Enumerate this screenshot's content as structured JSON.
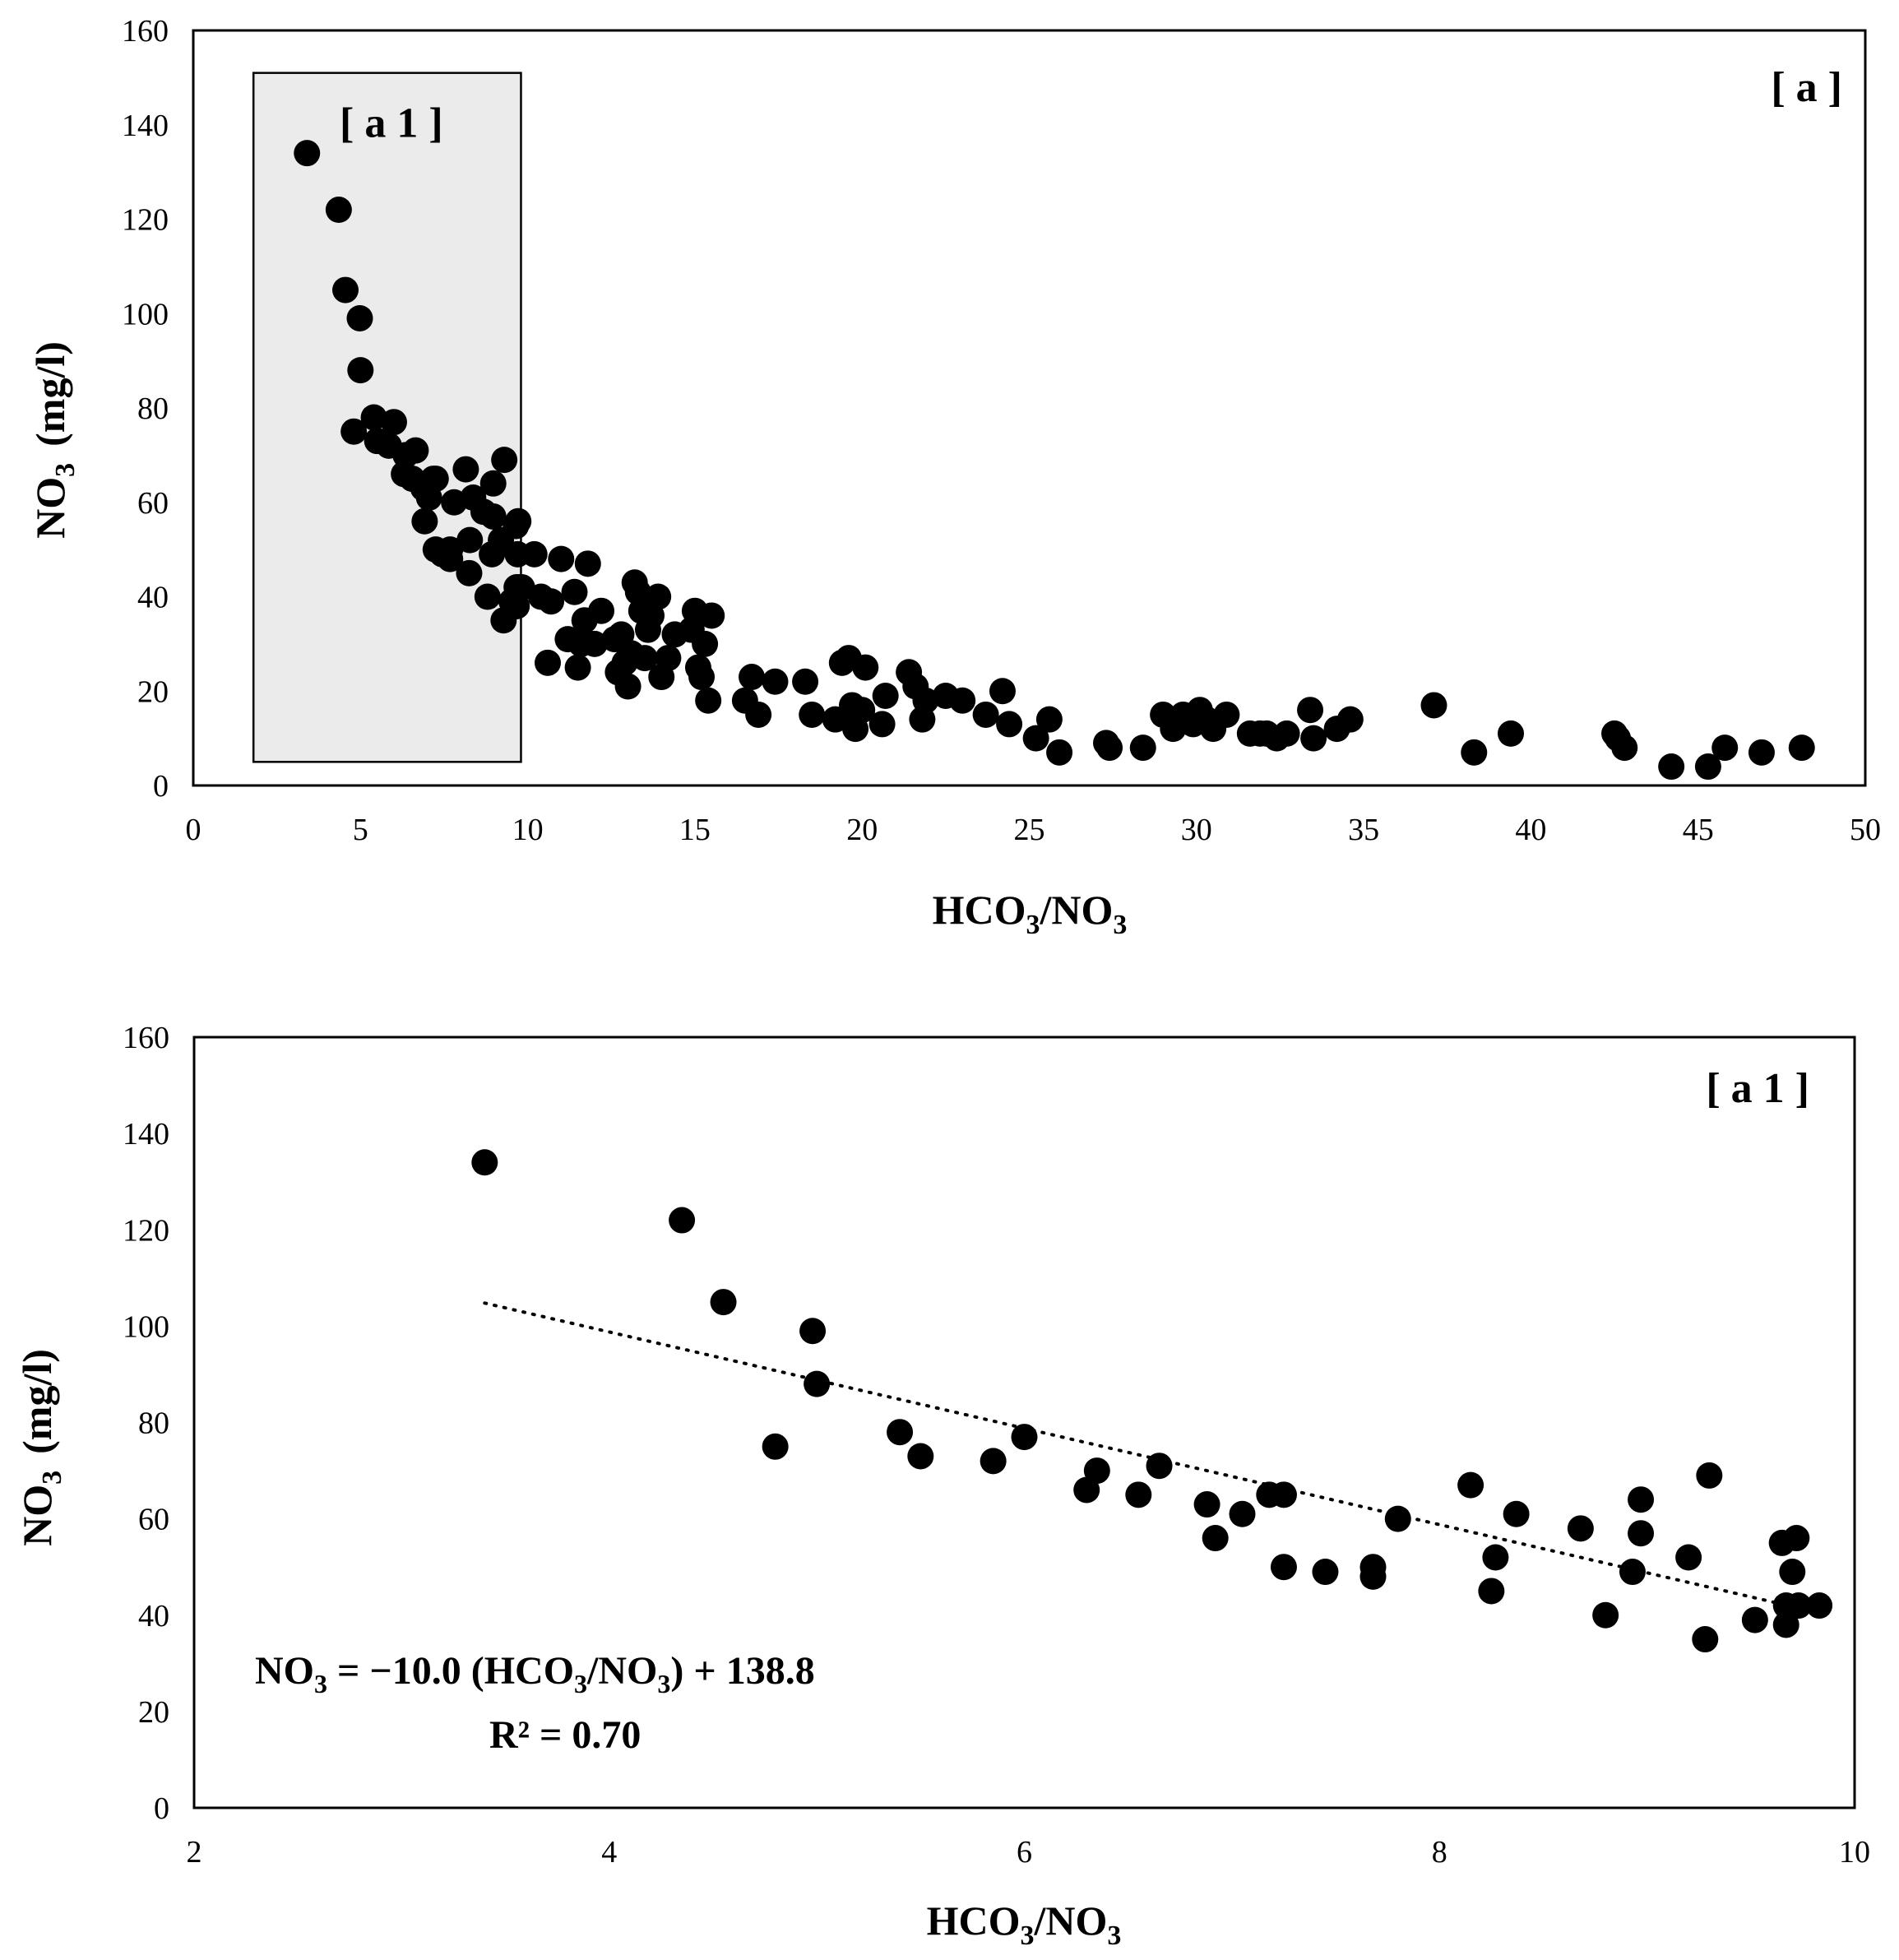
{
  "chart_data": [
    {
      "type": "scatter",
      "panel_label": "[ a ]",
      "xlabel": {
        "base": "HCO",
        "sub1": "3",
        "mid": "/NO",
        "sub2": "3"
      },
      "ylabel": {
        "base": "NO",
        "sub": "3",
        "unit": "(mg/l)"
      },
      "xlim": [
        0,
        50
      ],
      "ylim": [
        0,
        160
      ],
      "x_ticks": [
        "0",
        "5",
        "10",
        "15",
        "20",
        "25",
        "30",
        "35",
        "40",
        "45",
        "50"
      ],
      "y_ticks": [
        "0",
        "20",
        "40",
        "60",
        "80",
        "100",
        "120",
        "140",
        "160"
      ],
      "highlight_box": {
        "label": "[ a 1 ]",
        "x_range": [
          1.8,
          9.8
        ],
        "y_range": [
          5,
          151
        ]
      },
      "x": [
        3.4,
        4.35,
        4.55,
        4.98,
        5.0,
        4.8,
        5.4,
        5.5,
        5.85,
        6.0,
        6.3,
        6.35,
        6.55,
        6.65,
        6.88,
        6.92,
        7.05,
        7.18,
        7.25,
        7.25,
        7.45,
        7.68,
        7.68,
        7.8,
        8.15,
        8.25,
        8.27,
        8.37,
        8.68,
        8.8,
        8.93,
        8.97,
        8.97,
        9.2,
        9.28,
        9.3,
        9.52,
        9.65,
        9.67,
        9.67,
        9.7,
        9.72,
        9.73,
        9.83,
        10.2,
        10.4,
        10.6,
        10.7,
        11.0,
        11.2,
        11.4,
        11.5,
        11.6,
        11.7,
        11.8,
        12.0,
        12.2,
        12.6,
        12.7,
        12.8,
        12.9,
        13.0,
        13.1,
        13.2,
        13.3,
        13.4,
        13.5,
        13.6,
        13.7,
        13.9,
        14.0,
        14.2,
        14.4,
        14.9,
        15.0,
        15.1,
        15.2,
        15.3,
        15.5,
        15.4,
        16.5,
        16.7,
        16.9,
        17.4,
        18.3,
        18.5,
        19.2,
        19.4,
        19.6,
        19.7,
        19.8,
        20.0,
        20.1,
        20.6,
        20.7,
        21.4,
        21.6,
        21.8,
        21.9,
        22.5,
        23.0,
        23.7,
        24.2,
        24.4,
        25.2,
        25.6,
        25.9,
        27.3,
        27.4,
        28.4,
        29.0,
        29.3,
        29.6,
        29.9,
        30.1,
        30.3,
        30.5,
        30.9,
        31.6,
        31.9,
        32.1,
        32.4,
        32.7,
        33.4,
        33.5,
        34.2,
        34.6,
        37.1,
        38.3,
        39.4,
        42.5,
        42.6,
        42.8,
        44.2,
        45.3,
        45.8,
        46.9,
        48.1
      ],
      "y": [
        134,
        122,
        105,
        99,
        88,
        75,
        78,
        73,
        72,
        77,
        66,
        70,
        65,
        71,
        63,
        56,
        61,
        65,
        50,
        65,
        49,
        48,
        50,
        60,
        67,
        45,
        52,
        61,
        58,
        40,
        49,
        64,
        57,
        52,
        35,
        69,
        39,
        55,
        42,
        38,
        49,
        56,
        42,
        42,
        49,
        40,
        26,
        39,
        48,
        31,
        41,
        25,
        30,
        35,
        47,
        30,
        37,
        31,
        24,
        32,
        26,
        21,
        28,
        43,
        41,
        37,
        27,
        33,
        36,
        40,
        23,
        27,
        32,
        33,
        37,
        25,
        23,
        30,
        36,
        18,
        18,
        23,
        15,
        22,
        22,
        15,
        14,
        26,
        27,
        17,
        12,
        16,
        25,
        13,
        19,
        24,
        21,
        14,
        18,
        19,
        18,
        15,
        20,
        13,
        10,
        14,
        7,
        9,
        8,
        8,
        15,
        12,
        15,
        13,
        16,
        14,
        12,
        15,
        11,
        11,
        11,
        10,
        11,
        16,
        10,
        12,
        14,
        17,
        7,
        11,
        11,
        10,
        8,
        4,
        4,
        8,
        7,
        8
      ]
    },
    {
      "type": "scatter",
      "panel_label": "[ a 1 ]",
      "xlabel": {
        "base": "HCO",
        "sub1": "3",
        "mid": "/NO",
        "sub2": "3"
      },
      "ylabel": {
        "base": "NO",
        "sub": "3",
        "unit": "(mg/l)"
      },
      "xlim": [
        2,
        10
      ],
      "ylim": [
        0,
        160
      ],
      "x_ticks": [
        "2",
        "4",
        "6",
        "8",
        "10"
      ],
      "y_ticks": [
        "0",
        "20",
        "40",
        "60",
        "80",
        "100",
        "120",
        "140",
        "160"
      ],
      "x": [
        3.4,
        4.35,
        4.55,
        4.98,
        5.0,
        4.8,
        5.4,
        5.5,
        5.85,
        6.0,
        6.3,
        6.35,
        6.55,
        6.65,
        6.88,
        6.92,
        7.05,
        7.18,
        7.25,
        7.25,
        7.45,
        7.68,
        7.68,
        7.8,
        8.15,
        8.25,
        8.27,
        8.37,
        8.68,
        8.8,
        8.93,
        8.97,
        8.97,
        9.2,
        9.28,
        9.3,
        9.52,
        9.65,
        9.67,
        9.67,
        9.7,
        9.72,
        9.73,
        9.83
      ],
      "y": [
        134,
        122,
        105,
        99,
        88,
        75,
        78,
        73,
        72,
        77,
        66,
        70,
        65,
        71,
        63,
        56,
        61,
        65,
        50,
        65,
        49,
        48,
        50,
        60,
        67,
        45,
        52,
        61,
        58,
        40,
        49,
        64,
        57,
        52,
        35,
        69,
        39,
        55,
        42,
        38,
        49,
        56,
        42,
        42
      ],
      "trendline": {
        "slope": -10.0,
        "intercept": 138.8,
        "x_range": [
          3.4,
          9.7
        ],
        "style": "dotted"
      },
      "equation": {
        "lhs": "NO",
        "lhs_sub": "3",
        "rhs_a": " = −10.0 (HCO",
        "rhs_sub1": "3",
        "rhs_b": "/NO",
        "rhs_sub2": "3",
        "rhs_c": ")  + 138.8"
      },
      "r_squared": "R² = 0.70"
    }
  ]
}
